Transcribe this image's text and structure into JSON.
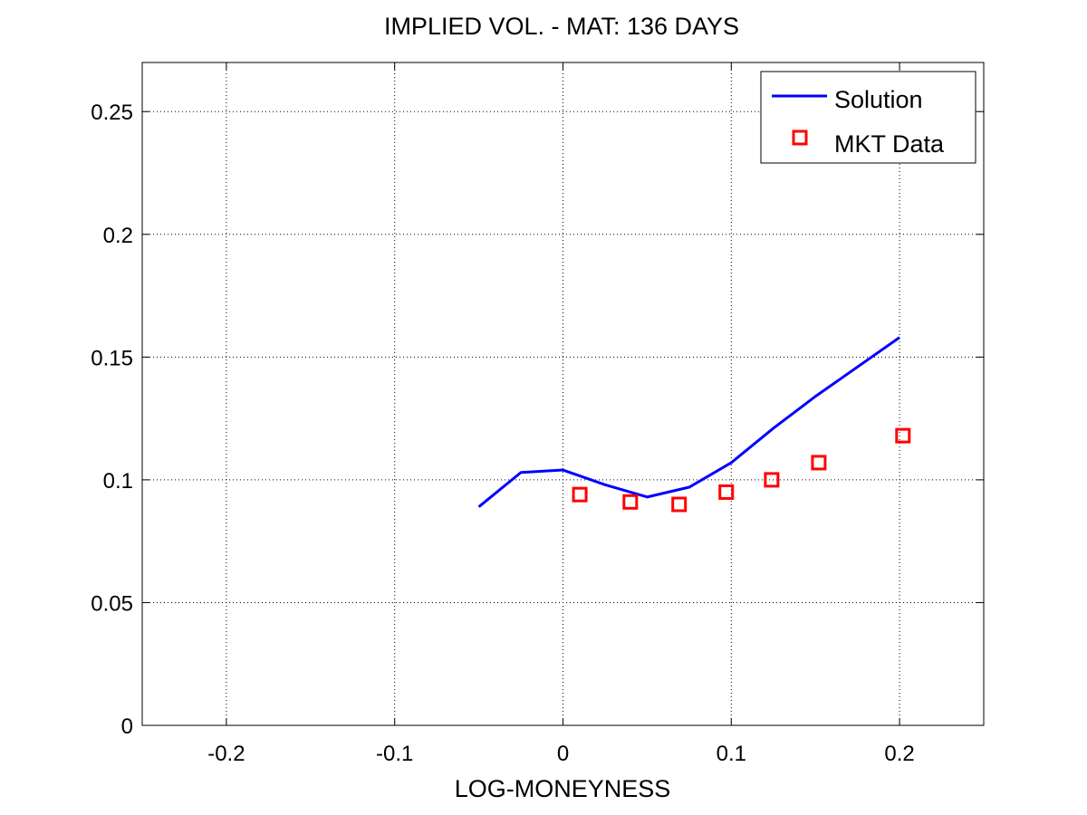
{
  "chart_data": {
    "type": "line",
    "title": "IMPLIED VOL. - MAT: 136 DAYS",
    "xlabel": "LOG-MONEYNESS",
    "ylabel": "",
    "xlim": [
      -0.25,
      0.25
    ],
    "ylim": [
      0,
      0.27
    ],
    "grid": true,
    "legend_position": "top-right",
    "x_ticks": [
      -0.2,
      -0.1,
      0,
      0.1,
      0.2
    ],
    "x_tick_labels": [
      "-0.2",
      "-0.1",
      "0",
      "0.1",
      "0.2"
    ],
    "y_ticks": [
      0,
      0.05,
      0.1,
      0.15,
      0.2,
      0.25
    ],
    "y_tick_labels": [
      "0",
      "0.05",
      "0.1",
      "0.15",
      "0.2",
      "0.25"
    ],
    "series": [
      {
        "name": "Solution",
        "kind": "line",
        "color": "#0000ff",
        "x": [
          -0.05,
          -0.025,
          0.0,
          0.025,
          0.05,
          0.075,
          0.1,
          0.125,
          0.15,
          0.175,
          0.2
        ],
        "y": [
          0.089,
          0.103,
          0.104,
          0.098,
          0.093,
          0.097,
          0.107,
          0.121,
          0.134,
          0.146,
          0.158
        ]
      },
      {
        "name": "MKT Data",
        "kind": "scatter",
        "marker": "square",
        "color": "#ff0000",
        "x": [
          0.01,
          0.04,
          0.069,
          0.097,
          0.124,
          0.152,
          0.202
        ],
        "y": [
          0.094,
          0.091,
          0.09,
          0.095,
          0.1,
          0.107,
          0.118
        ]
      }
    ]
  }
}
